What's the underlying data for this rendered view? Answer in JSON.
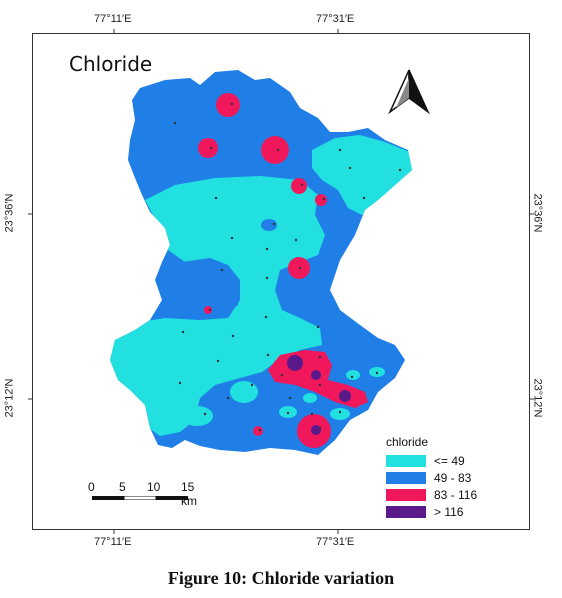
{
  "map": {
    "title": "Chloride",
    "longitude_labels": [
      "77°11′E",
      "77°31′E"
    ],
    "latitude_labels": [
      "23°36′N",
      "23°12′N"
    ]
  },
  "legend": {
    "title": "chloride",
    "items": [
      {
        "label": "<= 49",
        "color": "#22e0e0"
      },
      {
        "label": "49 - 83",
        "color": "#1f7fe6"
      },
      {
        "label": "83 - 116",
        "color": "#f0185a"
      },
      {
        "label": "> 116",
        "color": "#5a1a8c"
      }
    ]
  },
  "scale_bar": {
    "labels": [
      "0",
      "5",
      "10",
      "15 km"
    ]
  },
  "caption": "Figure 10: Chloride variation"
}
